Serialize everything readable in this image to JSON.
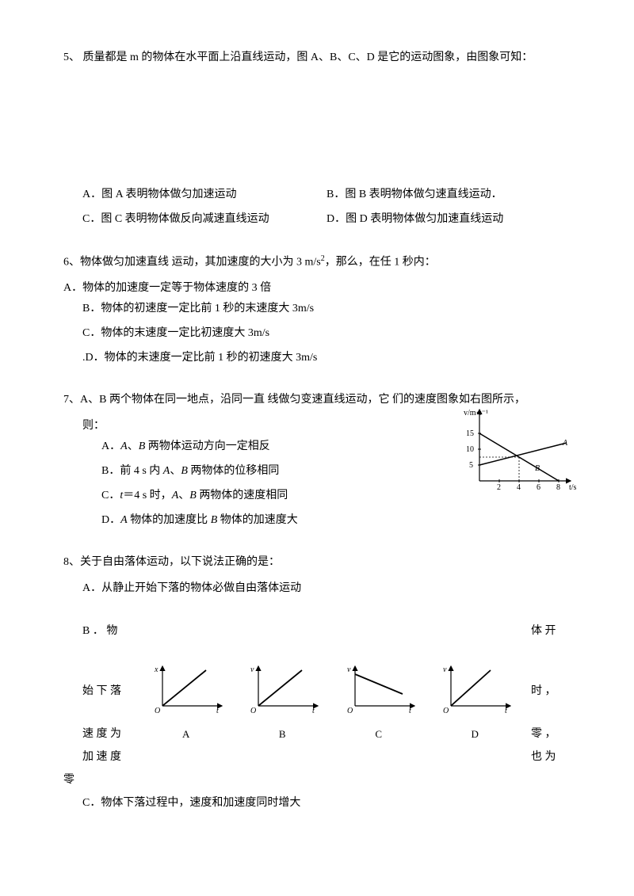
{
  "q5": {
    "text": "5、 质量都是 m 的物体在水平面上沿直线运动，图 A、B、C、D 是它的运动图象，由图象可知：",
    "optA": "A．图 A 表明物体做匀加速运动",
    "optB": "B．图 B 表明物体做匀速直线运动．",
    "optC": "C．图 C 表明物体做反向减速直线运动",
    "optD": "D．图 D 表明物体做匀加速直线运动"
  },
  "q6": {
    "text_before": "6、物体做匀加速直线 运动，其加速度的大小为 3 m/s",
    "text_after": "，那么，在任 1 秒内：",
    "sup": "2",
    "optA": "A．物体的加速度一定等于物体速度的 3 倍",
    "optB": "B．物体的初速度一定比前 1 秒的末速度大 3m/s",
    "optC": "C．物体的末速度一定比初速度大 3m/s",
    "optD": ".D．物体的末速度一定比前 1 秒的初速度大 3m/s"
  },
  "q7": {
    "text": "7、A、B 两个物体在同一地点，沿同一直 线做匀变速直线运动，它 们的速度图象如右图所示，",
    "text2": "则：",
    "optA_pre": "A．",
    "optA_i1": "A",
    "optA_mid": "、",
    "optA_i2": "B",
    "optA_post": " 两物体运动方向一定相反",
    "optB_pre": "B．前 4 s 内 ",
    "optB_i1": "A",
    "optB_mid": "、",
    "optB_i2": "B",
    "optB_post": " 两物体的位移相同",
    "optC_pre": "C．",
    "optC_i1": "t",
    "optC_mid1": "＝4 s 时，",
    "optC_i2": "A",
    "optC_mid2": "、",
    "optC_i3": "B",
    "optC_post": " 两物体的速度相同",
    "optD_pre": "D．",
    "optD_i1": "A",
    "optD_mid": " 物体的加速度比 ",
    "optD_i2": "B",
    "optD_post": " 物体的加速度大",
    "graph": {
      "ylabel": "v/m·s⁻¹",
      "xlabel": "t/s",
      "yticks": [
        "5",
        "10",
        "15"
      ],
      "xticks": [
        "2",
        "4",
        "6",
        "8"
      ],
      "labelA": "A",
      "labelB": "B",
      "line_color": "#000000",
      "grid_dash": "2,2"
    }
  },
  "q8": {
    "text": "8、关于自由落体运动，以下说法正确的是：",
    "optA": "A．从静止开始下落的物体必做自由落体运动",
    "b_left1": "B ． 物",
    "b_right1": "体 开",
    "b_left2": "始 下 落",
    "b_right2": "时 ，",
    "b_left3": "速 度 为",
    "b_right3": "零 ，",
    "b_left4": "加 速 度",
    "b_right4": "也 为",
    "b_left5": "零",
    "optC": "C．物体下落过程中，速度和加速度同时增大",
    "graphs": {
      "labels": [
        "A",
        "B",
        "C",
        "D"
      ],
      "ylabels": [
        "x",
        "v",
        "v",
        "v"
      ],
      "xlabel": "t",
      "origin": "O",
      "line_color": "#000000",
      "types": [
        "linear_up",
        "linear_up",
        "linear_down",
        "linear_up_origin"
      ]
    }
  }
}
